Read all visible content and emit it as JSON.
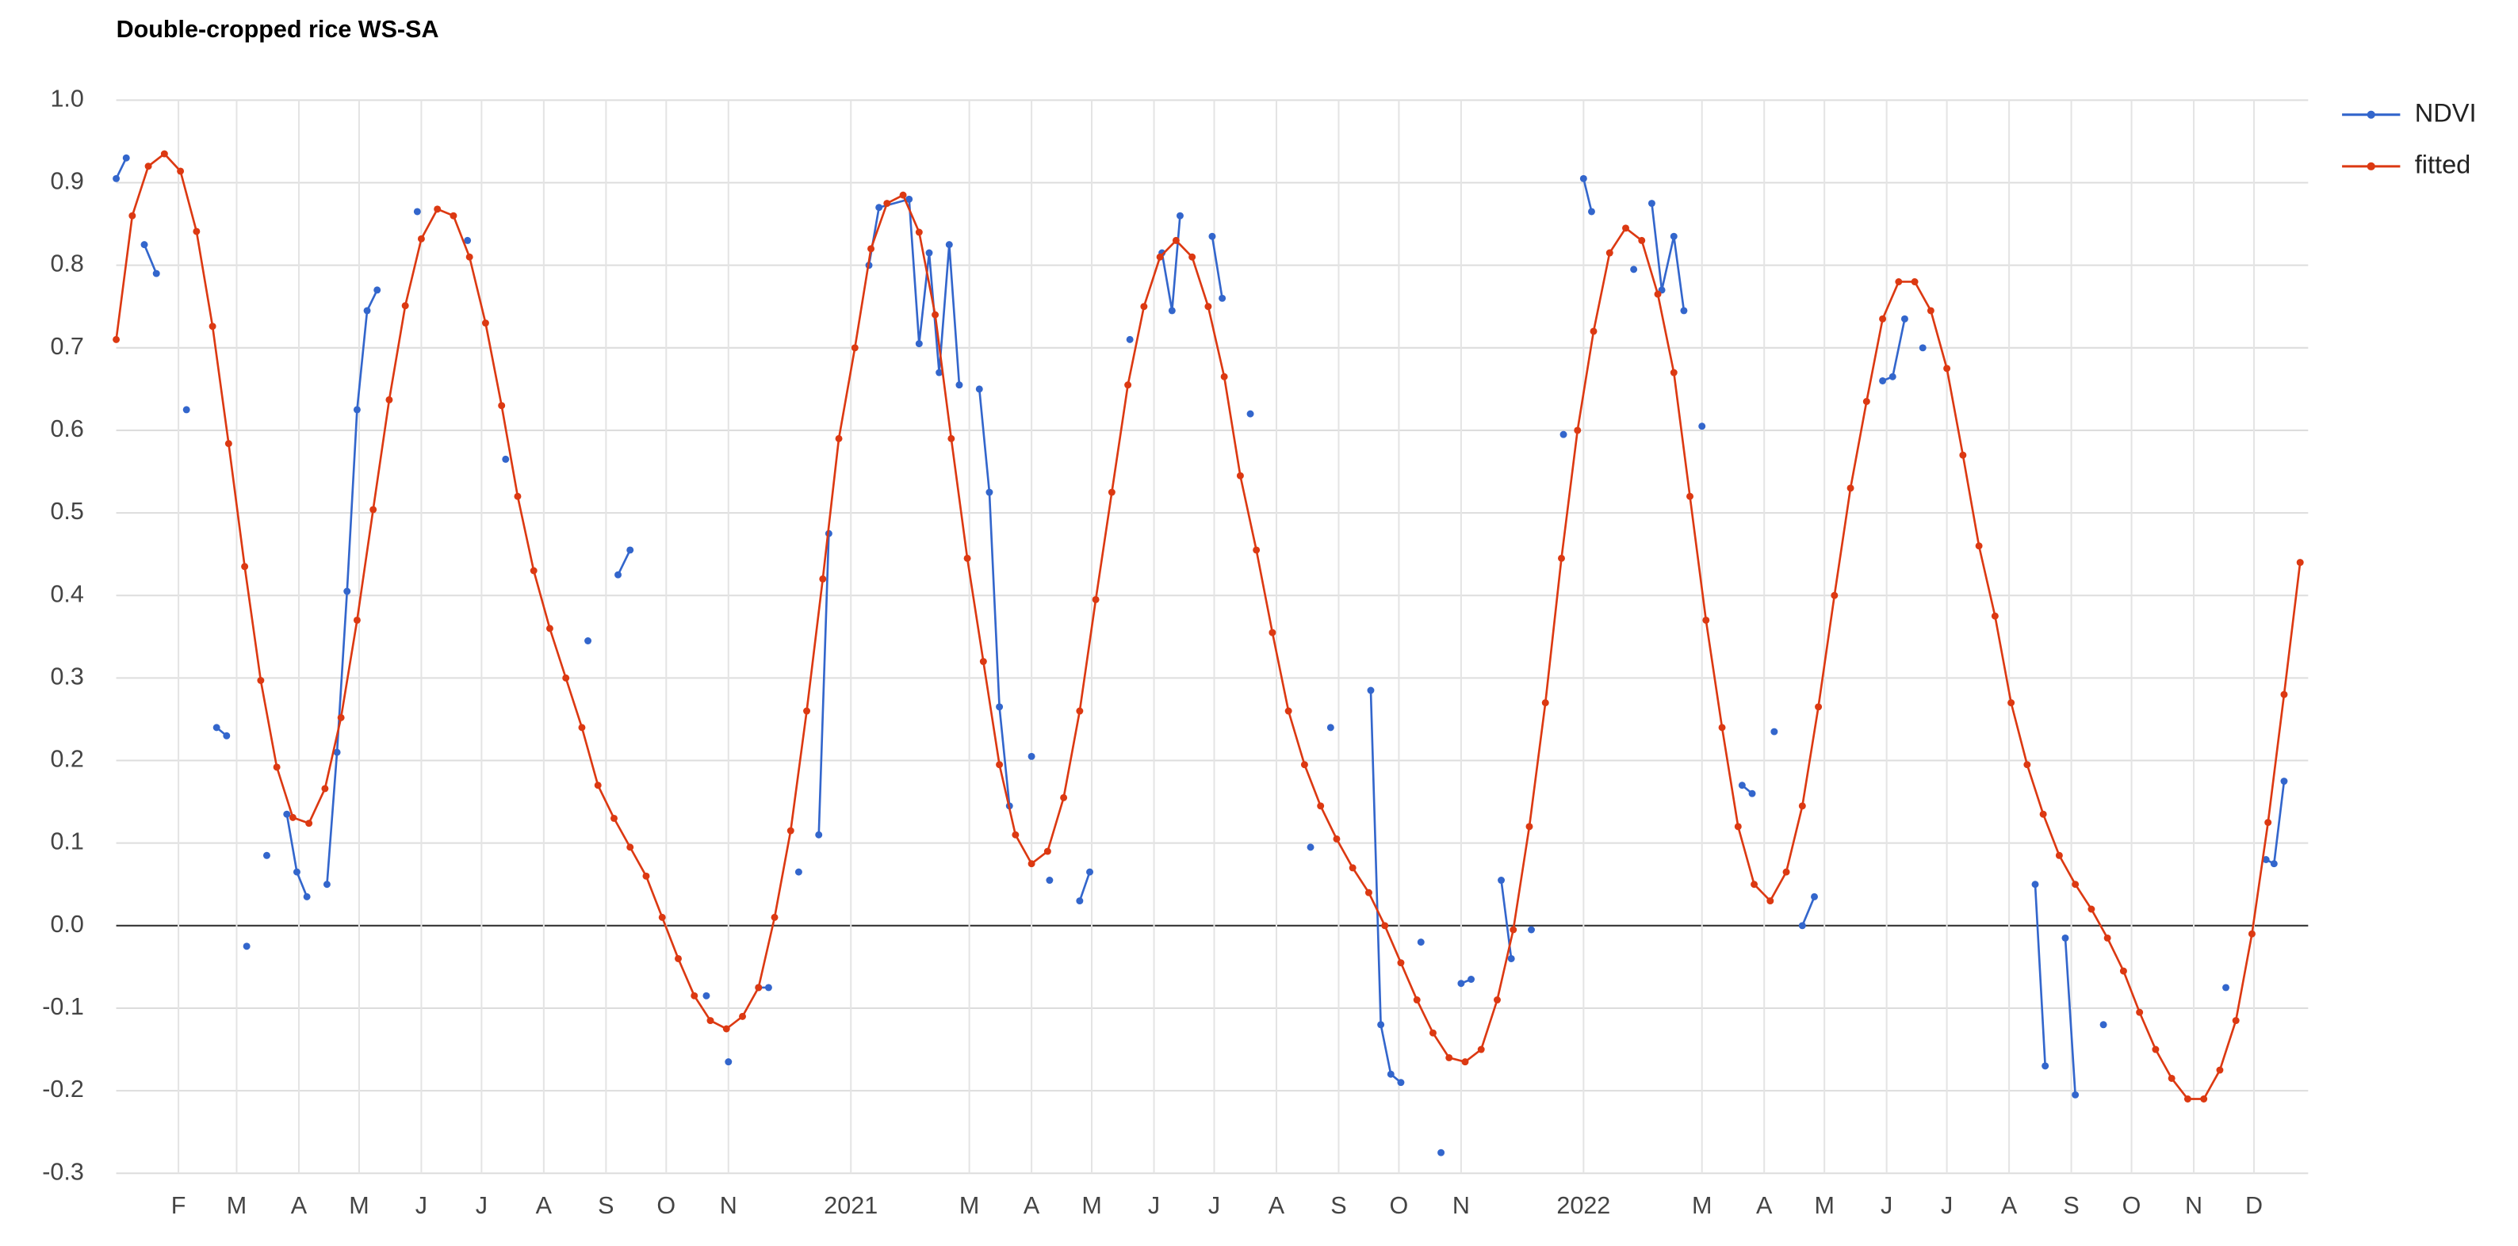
{
  "chart_data": {
    "type": "line",
    "title": "Double-cropped rice WS-SA",
    "xlim": [
      0,
      1092
    ],
    "xticks": [
      {
        "value": 31,
        "label": "F"
      },
      {
        "value": 60,
        "label": "M"
      },
      {
        "value": 91,
        "label": "A"
      },
      {
        "value": 121,
        "label": "M"
      },
      {
        "value": 152,
        "label": "J"
      },
      {
        "value": 182,
        "label": "J"
      },
      {
        "value": 213,
        "label": "A"
      },
      {
        "value": 244,
        "label": "S"
      },
      {
        "value": 274,
        "label": "O"
      },
      {
        "value": 305,
        "label": "N"
      },
      {
        "value": 366,
        "label": "2021"
      },
      {
        "value": 425,
        "label": "M"
      },
      {
        "value": 456,
        "label": "A"
      },
      {
        "value": 486,
        "label": "M"
      },
      {
        "value": 517,
        "label": "J"
      },
      {
        "value": 547,
        "label": "J"
      },
      {
        "value": 578,
        "label": "A"
      },
      {
        "value": 609,
        "label": "S"
      },
      {
        "value": 639,
        "label": "O"
      },
      {
        "value": 670,
        "label": "N"
      },
      {
        "value": 731,
        "label": "2022"
      },
      {
        "value": 790,
        "label": "M"
      },
      {
        "value": 821,
        "label": "A"
      },
      {
        "value": 851,
        "label": "M"
      },
      {
        "value": 882,
        "label": "J"
      },
      {
        "value": 912,
        "label": "J"
      },
      {
        "value": 943,
        "label": "A"
      },
      {
        "value": 974,
        "label": "S"
      },
      {
        "value": 1004,
        "label": "O"
      },
      {
        "value": 1035,
        "label": "N"
      },
      {
        "value": 1065,
        "label": "D"
      }
    ],
    "ylim": [
      -0.3,
      1.0
    ],
    "yticks": [
      -0.3,
      -0.2,
      -0.1,
      {
        "value": 0,
        "label": "0.0"
      },
      0.1,
      0.2,
      0.3,
      0.4,
      0.5,
      0.6,
      0.7,
      0.8,
      0.9,
      {
        "value": 1,
        "label": "1.0"
      }
    ],
    "grid": true,
    "legend": "right",
    "series": [
      {
        "name": "NDVI",
        "color": "#3366cc",
        "x": [
          0,
          5,
          10,
          14,
          20,
          27,
          35,
          42,
          50,
          55,
          60,
          65,
          70,
          75,
          80,
          85,
          90,
          95,
          100,
          105,
          110,
          115,
          120,
          125,
          130,
          140,
          150,
          162,
          175,
          185,
          194,
          215,
          235,
          243,
          250,
          256,
          275,
          294,
          300,
          305,
          313,
          320,
          325,
          333,
          340,
          345,
          350,
          355,
          365,
          375,
          380,
          395,
          400,
          405,
          410,
          415,
          420,
          425,
          430,
          435,
          440,
          445,
          450,
          456,
          460,
          465,
          472,
          480,
          485,
          495,
          505,
          513,
          521,
          526,
          530,
          538,
          546,
          551,
          558,
          565,
          580,
          595,
          600,
          605,
          615,
          625,
          630,
          635,
          640,
          645,
          650,
          655,
          660,
          665,
          670,
          675,
          682,
          690,
          695,
          700,
          705,
          713,
          721,
          726,
          731,
          735,
          745,
          756,
          760,
          765,
          770,
          776,
          781,
          785,
          790,
          800,
          810,
          815,
          820,
          826,
          833,
          840,
          846,
          863,
          880,
          885,
          891,
          895,
          900,
          928,
          956,
          961,
          966,
          971,
          976,
          983,
          990,
          1020,
          1051,
          1061,
          1071,
          1075,
          1080
        ],
        "values": [
          0.905,
          0.93,
          null,
          0.825,
          0.79,
          null,
          0.625,
          null,
          0.24,
          0.23,
          null,
          -0.025,
          null,
          0.085,
          null,
          0.135,
          0.065,
          0.035,
          null,
          0.05,
          0.21,
          0.405,
          0.625,
          0.745,
          0.77,
          null,
          0.865,
          null,
          0.83,
          null,
          0.565,
          null,
          0.345,
          null,
          0.425,
          0.455,
          null,
          -0.085,
          null,
          -0.165,
          null,
          -0.075,
          -0.075,
          null,
          0.065,
          null,
          0.11,
          0.475,
          null,
          0.8,
          0.87,
          0.88,
          0.705,
          0.815,
          0.67,
          0.825,
          0.655,
          null,
          0.65,
          0.525,
          0.265,
          0.145,
          null,
          0.205,
          null,
          0.055,
          null,
          0.03,
          0.065,
          null,
          0.71,
          null,
          0.815,
          0.745,
          0.86,
          null,
          0.835,
          0.76,
          null,
          0.62,
          null,
          0.095,
          null,
          0.24,
          null,
          0.285,
          -0.12,
          -0.18,
          -0.19,
          null,
          -0.02,
          null,
          -0.275,
          null,
          -0.07,
          -0.065,
          null,
          0.055,
          -0.04,
          null,
          -0.005,
          null,
          0.595,
          null,
          0.905,
          0.865,
          null,
          0.795,
          null,
          0.875,
          0.77,
          0.835,
          0.745,
          null,
          0.605,
          null,
          0.17,
          0.16,
          null,
          0.235,
          null,
          0.0,
          0.035,
          null,
          0.66,
          0.665,
          0.735,
          null,
          0.7,
          null,
          0.05,
          -0.17,
          null,
          -0.015,
          -0.205,
          null,
          -0.12,
          null,
          -0.075,
          null,
          0.08,
          0.075,
          0.175
        ]
      },
      {
        "name": "fitted",
        "color": "#dc3912",
        "x": [
          0,
          8,
          16,
          24,
          32,
          40,
          48,
          56,
          64,
          72,
          80,
          88,
          96,
          104,
          112,
          120,
          128,
          136,
          144,
          152,
          160,
          168,
          176,
          184,
          192,
          200,
          208,
          216,
          224,
          232,
          240,
          248,
          256,
          264,
          272,
          280,
          288,
          296,
          304,
          312,
          320,
          328,
          336,
          344,
          352,
          360,
          368,
          376,
          384,
          392,
          400,
          408,
          416,
          424,
          432,
          440,
          448,
          456,
          464,
          472,
          480,
          488,
          496,
          504,
          512,
          520,
          528,
          536,
          544,
          552,
          560,
          568,
          576,
          584,
          592,
          600,
          608,
          616,
          624,
          632,
          640,
          648,
          656,
          664,
          672,
          680,
          688,
          696,
          704,
          712,
          720,
          728,
          736,
          744,
          752,
          760,
          768,
          776,
          784,
          792,
          800,
          808,
          816,
          824,
          832,
          840,
          848,
          856,
          864,
          872,
          880,
          888,
          896,
          904,
          912,
          920,
          928,
          936,
          944,
          952,
          960,
          968,
          976,
          984,
          992,
          1000,
          1008,
          1016,
          1024,
          1032,
          1040,
          1048,
          1056,
          1064,
          1072,
          1080,
          1088
        ],
        "values": [
          0.71,
          0.86,
          0.92,
          0.935,
          0.914,
          0.841,
          0.726,
          0.584,
          0.435,
          0.297,
          0.192,
          0.131,
          0.124,
          0.166,
          0.252,
          0.37,
          0.504,
          0.637,
          0.751,
          0.832,
          0.868,
          0.86,
          0.81,
          0.73,
          0.63,
          0.52,
          0.43,
          0.36,
          0.3,
          0.24,
          0.17,
          0.13,
          0.095,
          0.06,
          0.01,
          -0.04,
          -0.085,
          -0.115,
          -0.125,
          -0.11,
          -0.075,
          0.01,
          0.115,
          0.26,
          0.42,
          0.59,
          0.7,
          0.82,
          0.875,
          0.885,
          0.84,
          0.74,
          0.59,
          0.445,
          0.32,
          0.195,
          0.11,
          0.075,
          0.09,
          0.155,
          0.26,
          0.395,
          0.525,
          0.655,
          0.75,
          0.81,
          0.83,
          0.81,
          0.75,
          0.665,
          0.545,
          0.455,
          0.355,
          0.26,
          0.195,
          0.145,
          0.105,
          0.07,
          0.04,
          0.0,
          -0.045,
          -0.09,
          -0.13,
          -0.16,
          -0.165,
          -0.15,
          -0.09,
          -0.005,
          0.12,
          0.27,
          0.445,
          0.6,
          0.72,
          0.815,
          0.845,
          0.83,
          0.765,
          0.67,
          0.52,
          0.37,
          0.24,
          0.12,
          0.05,
          0.03,
          0.065,
          0.145,
          0.265,
          0.4,
          0.53,
          0.635,
          0.735,
          0.78,
          0.78,
          0.745,
          0.675,
          0.57,
          0.46,
          0.375,
          0.27,
          0.195,
          0.135,
          0.085,
          0.05,
          0.02,
          -0.015,
          -0.055,
          -0.105,
          -0.15,
          -0.185,
          -0.21,
          -0.21,
          -0.175,
          -0.115,
          -0.01,
          0.125,
          0.28,
          0.44
        ]
      }
    ]
  }
}
